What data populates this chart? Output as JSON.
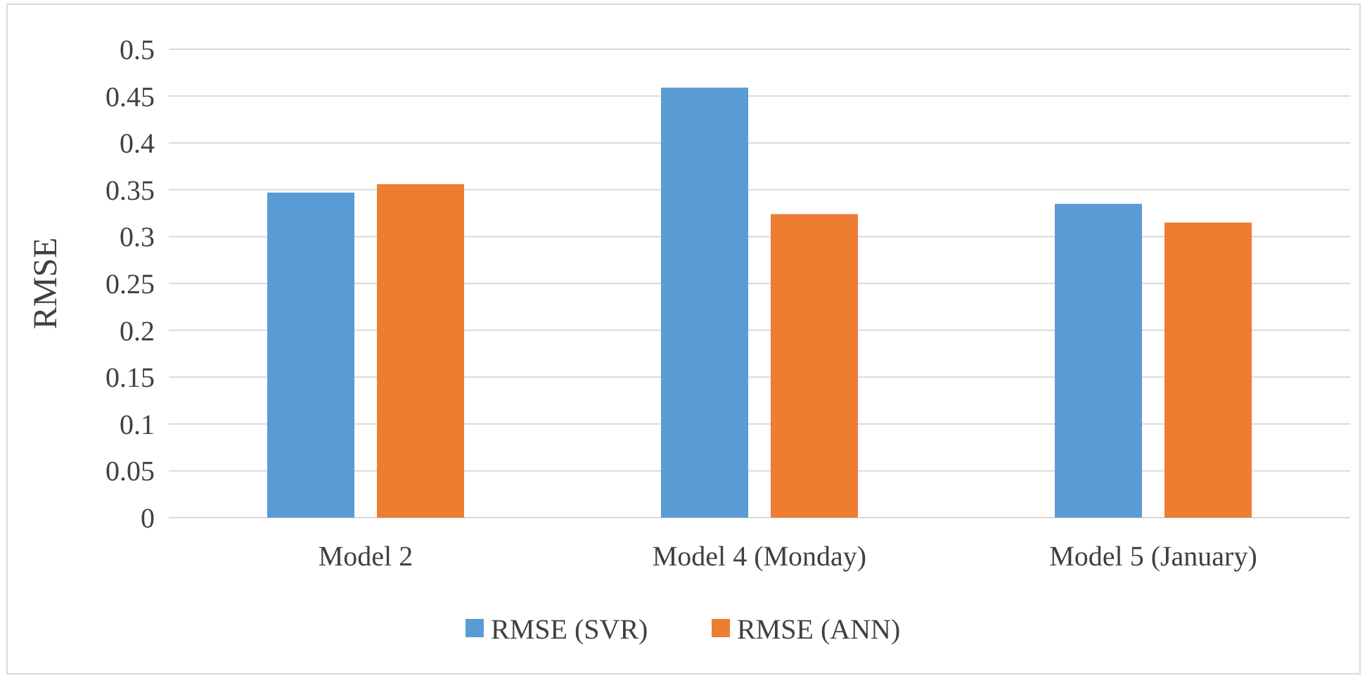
{
  "chart_data": {
    "type": "bar",
    "ylabel": "RMSE",
    "categories": [
      "Model 2",
      "Model 4 (Monday)",
      "Model 5 (January)"
    ],
    "series": [
      {
        "name": "RMSE (SVR)",
        "color": "#5b9bd5",
        "values": [
          0.347,
          0.459,
          0.335
        ]
      },
      {
        "name": "RMSE (ANN)",
        "color": "#ed7d31",
        "values": [
          0.356,
          0.324,
          0.315
        ]
      }
    ],
    "ylim": [
      0,
      0.5
    ],
    "yticks": [
      0,
      0.05,
      0.1,
      0.15,
      0.2,
      0.25,
      0.3,
      0.35,
      0.4,
      0.45,
      0.5
    ],
    "grid": "y",
    "legend": "bottom"
  }
}
